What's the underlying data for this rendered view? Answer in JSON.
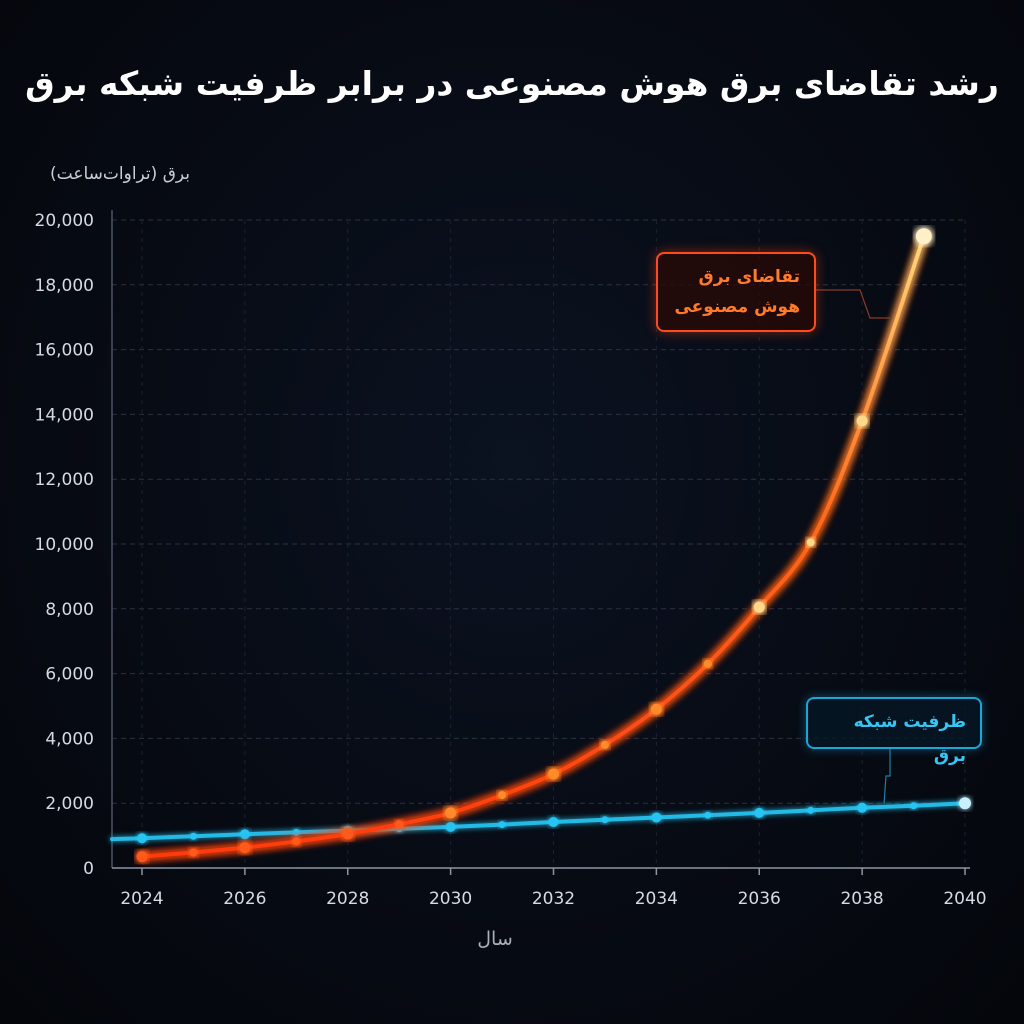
{
  "chart_data": {
    "type": "line",
    "title": "رشد تقاضای برق هوش مصنوعی در برابر ظرفیت شبکه برق",
    "ylabel": "برق (تراوات‌ساعت)",
    "xlabel": "سال",
    "ylim": [
      0,
      20000
    ],
    "xlim": [
      2024,
      2040
    ],
    "yticks": [
      "0",
      "2,000",
      "4,000",
      "6,000",
      "8,000",
      "10,000",
      "12,000",
      "14,000",
      "16,000",
      "18,000",
      "20,000"
    ],
    "xticks": [
      "2024",
      "2026",
      "2028",
      "2030",
      "2032",
      "2034",
      "2036",
      "2038",
      "2040"
    ],
    "grid": true,
    "series": [
      {
        "name": "تقاضای برق هوش مصنوعی",
        "name_lines": [
          "تقاضای برق",
          "هوش مصنوعی"
        ],
        "color": "#ff5a1f",
        "x": [
          2024,
          2025,
          2026,
          2027,
          2028,
          2029,
          2030,
          2031,
          2032,
          2033,
          2034,
          2035,
          2036,
          2037,
          2038,
          2039.2
        ],
        "values": [
          350,
          480,
          630,
          820,
          1050,
          1350,
          1700,
          2250,
          2900,
          3800,
          4900,
          6300,
          8050,
          10050,
          13800,
          19500
        ]
      },
      {
        "name": "ظرفیت شبکه برق",
        "color": "#25c4f2",
        "x": [
          2024,
          2025,
          2026,
          2027,
          2028,
          2029,
          2030,
          2031,
          2032,
          2033,
          2034,
          2035,
          2036,
          2037,
          2038,
          2039,
          2040
        ],
        "values": [
          920,
          980,
          1040,
          1100,
          1150,
          1210,
          1270,
          1340,
          1420,
          1490,
          1560,
          1630,
          1700,
          1780,
          1860,
          1920,
          2000
        ]
      }
    ]
  }
}
